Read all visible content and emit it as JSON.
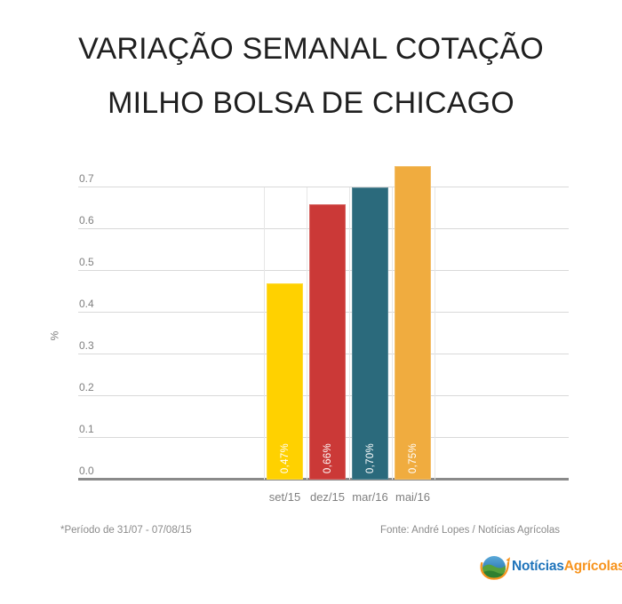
{
  "title": {
    "line1": "VARIAÇÃO SEMANAL COTAÇÃO",
    "line2": "MILHO BOLSA DE CHICAGO"
  },
  "chart_data": {
    "type": "bar",
    "title": "VARIAÇÃO SEMANAL COTAÇÃO MILHO BOLSA DE CHICAGO",
    "categories": [
      "set/15",
      "dez/15",
      "mar/16",
      "mai/16"
    ],
    "values": [
      0.47,
      0.66,
      0.7,
      0.75
    ],
    "bar_value_labels": [
      "0,47%",
      "0,66%",
      "0,70%",
      "0,75%"
    ],
    "bar_colors": [
      "#ffd100",
      "#cb3937",
      "#2b6a7c",
      "#f0ac3f"
    ],
    "xlabel": "",
    "ylabel": "%",
    "ylim": [
      0,
      0.75
    ],
    "ytick_values": [
      0,
      0.1,
      0.2,
      0.3,
      0.4,
      0.5,
      0.6,
      0.7
    ],
    "ytick_labels": [
      "0.0",
      "0.1",
      "0.2",
      "0.3",
      "0.4",
      "0.5",
      "0.6",
      "0.7"
    ],
    "grid": true,
    "legend": false
  },
  "footer": {
    "period_note": "*Período de 31/07 - 07/08/15",
    "source": "Fonte: André Lopes / Notícias Agrícolas"
  },
  "logo": {
    "text_part1": "Notícias",
    "text_part2": "Agrícolas",
    "color_part1": "#1f74bb",
    "color_part2": "#f7941e"
  },
  "colors": {
    "gridline": "#d9d9d9",
    "category_separator": "#e6e6e6",
    "axis_line": "#8a8a8a",
    "tick_text": "#7f7f7f",
    "title_text": "#1f1f1f",
    "footer_text": "#8a8a8a",
    "bar_label_text": "#ffffff"
  }
}
